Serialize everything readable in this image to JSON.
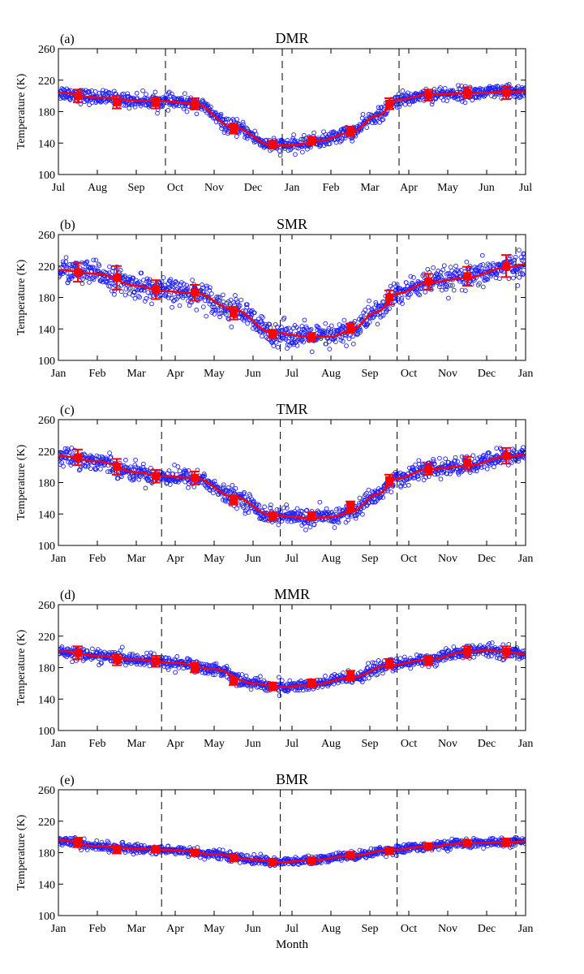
{
  "figure": {
    "xlabel": "Month"
  },
  "colors": {
    "scatter": "#1f1fff",
    "fit": "#ff0000",
    "frame": "#000000",
    "marker_lines": "#000000"
  },
  "chart_data": [
    {
      "type": "scatter",
      "panel": "(a)",
      "title": "DMR",
      "ylabel": "Temperature (K)",
      "xlabel": "",
      "ylim": [
        100,
        260
      ],
      "yticks": [
        100,
        140,
        180,
        220,
        260
      ],
      "xlim": [
        0,
        12
      ],
      "xticks": [
        "Jul",
        "Aug",
        "Sep",
        "Oct",
        "Nov",
        "Dec",
        "Jan",
        "Feb",
        "Mar",
        "Apr",
        "May",
        "Jun",
        "Jul"
      ],
      "vlines": [
        2.75,
        5.75,
        8.75,
        11.75
      ],
      "spread": 8,
      "fit_x": [
        0,
        1,
        2,
        2.75,
        3.5,
        4.5,
        5.5,
        6,
        6.7,
        7.5,
        8.2,
        8.75,
        9.5,
        10.5,
        11.5,
        12
      ],
      "fit_y": [
        204,
        198,
        194,
        193,
        190,
        160,
        137,
        137,
        143,
        153,
        175,
        195,
        202,
        203,
        205,
        205
      ],
      "means": [
        {
          "x": 0.5,
          "y": 200,
          "err": 8
        },
        {
          "x": 1.5,
          "y": 192,
          "err": 8
        },
        {
          "x": 2.5,
          "y": 191,
          "err": 7
        },
        {
          "x": 3.5,
          "y": 190,
          "err": 7
        },
        {
          "x": 4.5,
          "y": 158,
          "err": 6
        },
        {
          "x": 5.5,
          "y": 138,
          "err": 5
        },
        {
          "x": 6.5,
          "y": 143,
          "err": 5
        },
        {
          "x": 7.5,
          "y": 155,
          "err": 6
        },
        {
          "x": 8.5,
          "y": 190,
          "err": 7
        },
        {
          "x": 9.5,
          "y": 201,
          "err": 7
        },
        {
          "x": 10.5,
          "y": 204,
          "err": 7
        },
        {
          "x": 11.5,
          "y": 204,
          "err": 8
        }
      ]
    },
    {
      "type": "scatter",
      "panel": "(b)",
      "title": "SMR",
      "ylabel": "Temperature (K)",
      "xlabel": "",
      "ylim": [
        100,
        260
      ],
      "yticks": [
        100,
        140,
        180,
        220,
        260
      ],
      "xlim": [
        0,
        12
      ],
      "xticks": [
        "Jan",
        "Feb",
        "Mar",
        "Apr",
        "May",
        "Jun",
        "Jul",
        "Aug",
        "Sep",
        "Oct",
        "Nov",
        "Dec",
        "Jan"
      ],
      "vlines": [
        2.65,
        5.7,
        8.7,
        11.75
      ],
      "spread": 14,
      "fit_x": [
        0,
        1,
        2,
        2.65,
        3.5,
        4.5,
        5.5,
        6.5,
        7,
        7.5,
        8.2,
        8.7,
        9.5,
        10.5,
        11.5,
        12
      ],
      "fit_y": [
        215,
        210,
        195,
        188,
        186,
        165,
        135,
        130,
        130,
        138,
        162,
        185,
        199,
        205,
        218,
        222
      ],
      "means": [
        {
          "x": 0.5,
          "y": 212,
          "err": 12
        },
        {
          "x": 1.5,
          "y": 205,
          "err": 15
        },
        {
          "x": 2.5,
          "y": 190,
          "err": 12
        },
        {
          "x": 3.5,
          "y": 186,
          "err": 10
        },
        {
          "x": 4.5,
          "y": 160,
          "err": 8
        },
        {
          "x": 5.5,
          "y": 134,
          "err": 5
        },
        {
          "x": 6.5,
          "y": 130,
          "err": 5
        },
        {
          "x": 7.5,
          "y": 141,
          "err": 6
        },
        {
          "x": 8.5,
          "y": 180,
          "err": 9
        },
        {
          "x": 9.5,
          "y": 200,
          "err": 10
        },
        {
          "x": 10.5,
          "y": 207,
          "err": 12
        },
        {
          "x": 11.5,
          "y": 220,
          "err": 14
        }
      ]
    },
    {
      "type": "scatter",
      "panel": "(c)",
      "title": "TMR",
      "ylabel": "Temperature (K)",
      "xlabel": "",
      "ylim": [
        100,
        260
      ],
      "yticks": [
        100,
        140,
        180,
        220,
        260
      ],
      "xlim": [
        0,
        12
      ],
      "xticks": [
        "Jan",
        "Feb",
        "Mar",
        "Apr",
        "May",
        "Jun",
        "Jul",
        "Aug",
        "Sep",
        "Oct",
        "Nov",
        "Dec",
        "Jan"
      ],
      "vlines": [
        2.65,
        5.7,
        8.7,
        11.75
      ],
      "spread": 10,
      "fit_x": [
        0,
        1,
        2,
        2.65,
        3.5,
        4.5,
        5.5,
        6.5,
        7,
        7.5,
        8.2,
        8.7,
        9.5,
        10.5,
        11.5,
        12
      ],
      "fit_y": [
        214,
        207,
        193,
        188,
        186,
        162,
        138,
        135,
        136,
        142,
        165,
        185,
        197,
        201,
        213,
        215
      ],
      "means": [
        {
          "x": 0.5,
          "y": 212,
          "err": 10
        },
        {
          "x": 1.5,
          "y": 200,
          "err": 10
        },
        {
          "x": 2.5,
          "y": 188,
          "err": 8
        },
        {
          "x": 3.5,
          "y": 186,
          "err": 8
        },
        {
          "x": 4.5,
          "y": 158,
          "err": 6
        },
        {
          "x": 5.5,
          "y": 137,
          "err": 5
        },
        {
          "x": 6.5,
          "y": 137,
          "err": 5
        },
        {
          "x": 7.5,
          "y": 150,
          "err": 6
        },
        {
          "x": 8.5,
          "y": 183,
          "err": 7
        },
        {
          "x": 9.5,
          "y": 197,
          "err": 7
        },
        {
          "x": 10.5,
          "y": 205,
          "err": 8
        },
        {
          "x": 11.5,
          "y": 214,
          "err": 10
        }
      ]
    },
    {
      "type": "scatter",
      "panel": "(d)",
      "title": "MMR",
      "ylabel": "Temperature (K)",
      "xlabel": "",
      "ylim": [
        100,
        260
      ],
      "yticks": [
        100,
        140,
        180,
        220,
        260
      ],
      "xlim": [
        0,
        12
      ],
      "xticks": [
        "Jan",
        "Feb",
        "Mar",
        "Apr",
        "May",
        "Jun",
        "Jul",
        "Aug",
        "Sep",
        "Oct",
        "Nov",
        "Dec",
        "Jan"
      ],
      "vlines": [
        2.65,
        5.7,
        8.7,
        11.75
      ],
      "spread": 7,
      "fit_x": [
        0,
        1,
        2,
        3,
        4,
        5,
        5.7,
        6.5,
        7.5,
        8.5,
        9.5,
        10.5,
        11,
        11.5,
        12
      ],
      "fit_y": [
        201,
        195,
        190,
        186,
        178,
        160,
        155,
        158,
        167,
        183,
        190,
        200,
        202,
        200,
        197
      ],
      "means": [
        {
          "x": 0.5,
          "y": 199,
          "err": 8
        },
        {
          "x": 1.5,
          "y": 190,
          "err": 7
        },
        {
          "x": 2.5,
          "y": 188,
          "err": 7
        },
        {
          "x": 3.5,
          "y": 180,
          "err": 6
        },
        {
          "x": 4.5,
          "y": 163,
          "err": 5
        },
        {
          "x": 5.5,
          "y": 156,
          "err": 5
        },
        {
          "x": 6.5,
          "y": 160,
          "err": 5
        },
        {
          "x": 7.5,
          "y": 170,
          "err": 6
        },
        {
          "x": 8.5,
          "y": 185,
          "err": 6
        },
        {
          "x": 9.5,
          "y": 189,
          "err": 6
        },
        {
          "x": 10.5,
          "y": 200,
          "err": 7
        },
        {
          "x": 11.5,
          "y": 200,
          "err": 7
        }
      ]
    },
    {
      "type": "scatter",
      "panel": "(e)",
      "title": "BMR",
      "ylabel": "Temperature (K)",
      "xlabel": "Month",
      "ylim": [
        100,
        260
      ],
      "yticks": [
        100,
        140,
        180,
        220,
        260
      ],
      "xlim": [
        0,
        12
      ],
      "xticks": [
        "Jan",
        "Feb",
        "Mar",
        "Apr",
        "May",
        "Jun",
        "Jul",
        "Aug",
        "Sep",
        "Oct",
        "Nov",
        "Dec",
        "Jan"
      ],
      "vlines": [
        2.65,
        5.7,
        8.7,
        11.75
      ],
      "spread": 5,
      "fit_x": [
        0,
        1,
        2,
        3,
        4,
        5,
        5.7,
        6.5,
        7.5,
        8.5,
        9.5,
        10.5,
        11.5,
        12
      ],
      "fit_y": [
        196,
        188,
        185,
        183,
        178,
        171,
        168,
        170,
        176,
        183,
        188,
        192,
        193,
        194
      ],
      "means": [
        {
          "x": 0.5,
          "y": 193,
          "err": 6
        },
        {
          "x": 1.5,
          "y": 184,
          "err": 5
        },
        {
          "x": 2.5,
          "y": 184,
          "err": 4
        },
        {
          "x": 3.5,
          "y": 180,
          "err": 4
        },
        {
          "x": 4.5,
          "y": 173,
          "err": 4
        },
        {
          "x": 5.5,
          "y": 168,
          "err": 4
        },
        {
          "x": 6.5,
          "y": 170,
          "err": 4
        },
        {
          "x": 7.5,
          "y": 177,
          "err": 4
        },
        {
          "x": 8.5,
          "y": 182,
          "err": 4
        },
        {
          "x": 9.5,
          "y": 188,
          "err": 4
        },
        {
          "x": 10.5,
          "y": 192,
          "err": 4
        },
        {
          "x": 11.5,
          "y": 193,
          "err": 5
        }
      ]
    }
  ]
}
